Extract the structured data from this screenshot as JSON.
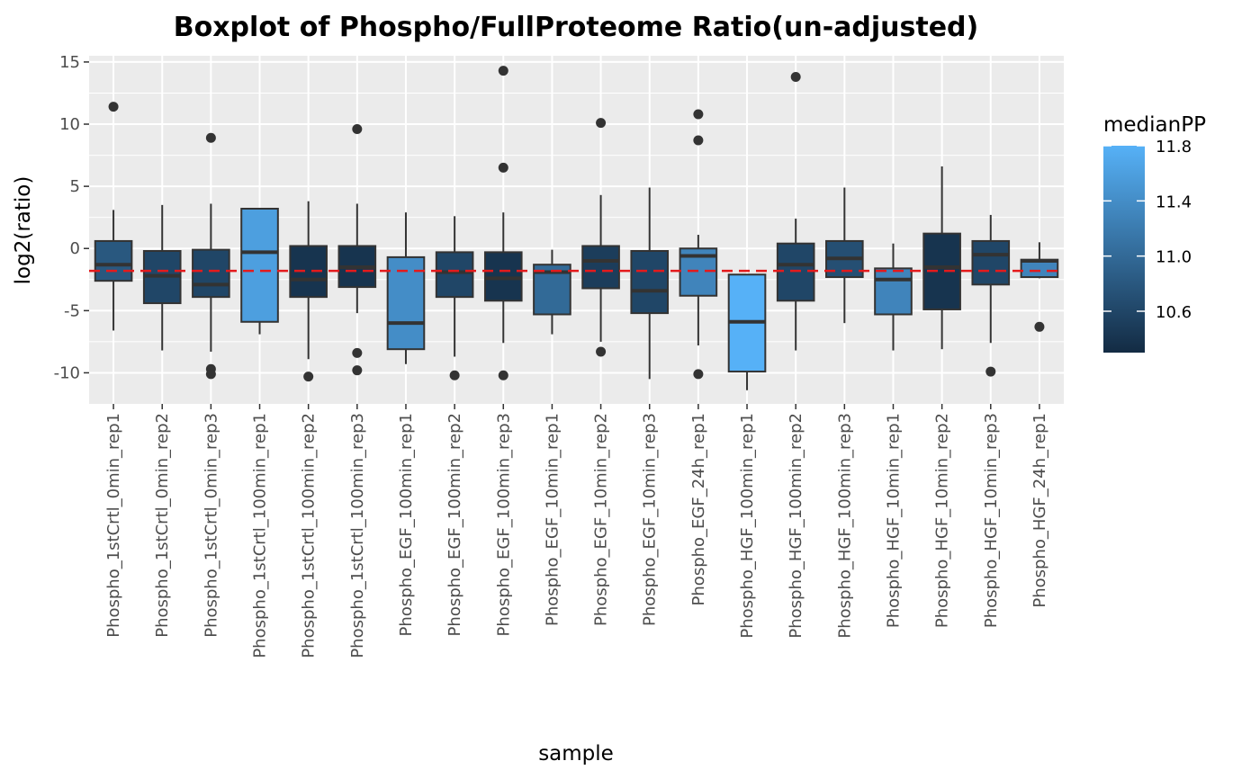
{
  "chart_data": {
    "type": "boxplot",
    "title": "Boxplot of Phospho/FullProteome Ratio(un-adjusted)",
    "xlabel": "sample",
    "ylabel": "log2(ratio)",
    "ylim": [
      -12.5,
      15.5
    ],
    "yticks": [
      -10,
      -5,
      0,
      5,
      10,
      15
    ],
    "grid": true,
    "reference_line": {
      "y": -1.8,
      "color": "#e41a1c",
      "style": "dashed"
    },
    "legend": {
      "title": "medianPP",
      "position": "right",
      "range": [
        10.3,
        11.8
      ],
      "ticks": [
        10.6,
        11.0,
        11.4,
        11.8
      ],
      "labels": [
        "10.6",
        "11.0",
        "11.4",
        "11.8"
      ],
      "low_color": "#132b43",
      "high_color": "#56b1f7"
    },
    "categories": [
      "Phospho_1stCrtl_0min_rep1",
      "Phospho_1stCrtl_0min_rep2",
      "Phospho_1stCrtl_0min_rep3",
      "Phospho_1stCrtl_100min_rep1",
      "Phospho_1stCrtl_100min_rep2",
      "Phospho_1stCrtl_100min_rep3",
      "Phospho_EGF_100min_rep1",
      "Phospho_EGF_100min_rep2",
      "Phospho_EGF_100min_rep3",
      "Phospho_EGF_10min_rep1",
      "Phospho_EGF_10min_rep2",
      "Phospho_EGF_10min_rep3",
      "Phospho_EGF_24h_rep1",
      "Phospho_HGF_100min_rep1",
      "Phospho_HGF_100min_rep2",
      "Phospho_HGF_100min_rep3",
      "Phospho_HGF_10min_rep1",
      "Phospho_HGF_10min_rep2",
      "Phospho_HGF_10min_rep3",
      "Phospho_HGF_24h_rep1"
    ],
    "boxes": [
      {
        "low": -6.6,
        "q1": -2.6,
        "median": -1.3,
        "q3": 0.6,
        "high": 3.1,
        "outliers": [
          11.4
        ],
        "medianPP": 10.8
      },
      {
        "low": -8.2,
        "q1": -4.4,
        "median": -2.2,
        "q3": -0.2,
        "high": 3.5,
        "outliers": [],
        "medianPP": 10.6
      },
      {
        "low": -8.3,
        "q1": -3.9,
        "median": -2.9,
        "q3": -0.1,
        "high": 3.6,
        "outliers": [
          8.9,
          -9.7,
          -10.1
        ],
        "medianPP": 10.6
      },
      {
        "low": -6.9,
        "q1": -5.9,
        "median": -0.3,
        "q3": 3.2,
        "high": 3.2,
        "outliers": [],
        "medianPP": 11.6
      },
      {
        "low": -8.9,
        "q1": -3.9,
        "median": -2.5,
        "q3": 0.2,
        "high": 3.8,
        "outliers": [
          -10.3
        ],
        "medianPP": 10.4
      },
      {
        "low": -5.2,
        "q1": -3.1,
        "median": -1.5,
        "q3": 0.2,
        "high": 3.6,
        "outliers": [
          9.6,
          -8.4,
          -9.8
        ],
        "medianPP": 10.4
      },
      {
        "low": -9.3,
        "q1": -8.1,
        "median": -6.0,
        "q3": -0.7,
        "high": 2.9,
        "outliers": [],
        "medianPP": 11.4
      },
      {
        "low": -8.7,
        "q1": -3.9,
        "median": -1.9,
        "q3": -0.3,
        "high": 2.6,
        "outliers": [
          -10.2
        ],
        "medianPP": 10.6
      },
      {
        "low": -7.6,
        "q1": -4.2,
        "median": -2.4,
        "q3": -0.3,
        "high": 2.9,
        "outliers": [
          14.3,
          6.5,
          -10.2
        ],
        "medianPP": 10.4
      },
      {
        "low": -6.9,
        "q1": -5.3,
        "median": -1.9,
        "q3": -1.3,
        "high": -0.1,
        "outliers": [],
        "medianPP": 11.0
      },
      {
        "low": -7.5,
        "q1": -3.2,
        "median": -1.0,
        "q3": 0.2,
        "high": 4.3,
        "outliers": [
          10.1,
          -8.3
        ],
        "medianPP": 10.5
      },
      {
        "low": -10.5,
        "q1": -5.2,
        "median": -3.4,
        "q3": -0.2,
        "high": 4.9,
        "outliers": [],
        "medianPP": 10.6
      },
      {
        "low": -7.8,
        "q1": -3.8,
        "median": -0.6,
        "q3": 0.0,
        "high": 1.1,
        "outliers": [
          10.8,
          8.7,
          -10.1
        ],
        "medianPP": 11.3
      },
      {
        "low": -11.4,
        "q1": -9.9,
        "median": -5.9,
        "q3": -2.1,
        "high": -2.1,
        "outliers": [],
        "medianPP": 11.8
      },
      {
        "low": -8.2,
        "q1": -4.2,
        "median": -1.3,
        "q3": 0.4,
        "high": 2.4,
        "outliers": [
          13.8
        ],
        "medianPP": 10.6
      },
      {
        "low": -6.0,
        "q1": -2.3,
        "median": -0.8,
        "q3": 0.6,
        "high": 4.9,
        "outliers": [],
        "medianPP": 10.7
      },
      {
        "low": -8.2,
        "q1": -5.3,
        "median": -2.5,
        "q3": -1.6,
        "high": 0.4,
        "outliers": [],
        "medianPP": 11.3
      },
      {
        "low": -8.1,
        "q1": -4.9,
        "median": -1.5,
        "q3": 1.2,
        "high": 6.6,
        "outliers": [],
        "medianPP": 10.4
      },
      {
        "low": -7.6,
        "q1": -2.9,
        "median": -0.5,
        "q3": 0.6,
        "high": 2.7,
        "outliers": [
          -9.9
        ],
        "medianPP": 10.6
      },
      {
        "low": -2.4,
        "q1": -2.3,
        "median": -1.0,
        "q3": -0.9,
        "high": 0.5,
        "outliers": [
          -6.3
        ],
        "medianPP": 11.3
      }
    ]
  }
}
